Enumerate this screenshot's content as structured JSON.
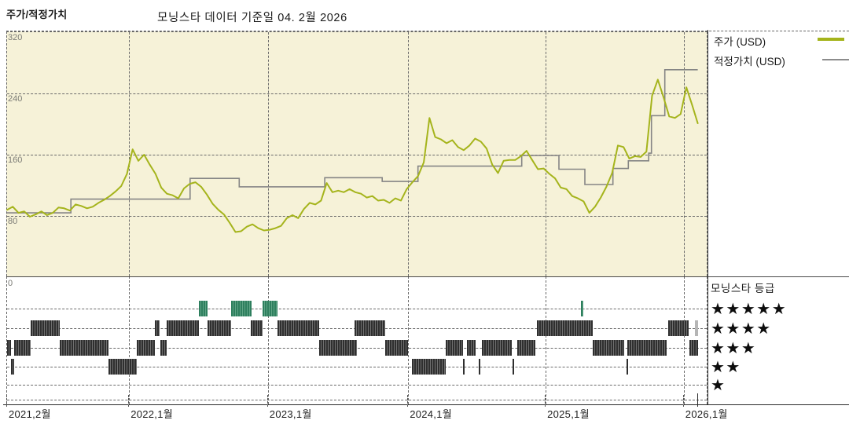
{
  "header": {
    "title_left": "주가/적정가치",
    "title_center": "모닝스타 데이터 기준일 04. 2월 2026"
  },
  "legend": {
    "items": [
      {
        "label": "주가 (USD)",
        "color": "#a5b41c",
        "thickness": 4
      },
      {
        "label": "적정가치 (USD)",
        "color": "#8c8c8c",
        "thickness": 2
      }
    ]
  },
  "rating_legend": {
    "title": "모닝스타 등급",
    "star": "★",
    "rows": [
      5,
      4,
      3,
      2,
      1
    ]
  },
  "colors": {
    "plot_bg": "#f6f2d8",
    "price_line": "#a5b41c",
    "fair_value_line": "#858585",
    "rating_neutral": "#2f2f2f",
    "rating_positive": "#2e7f5e",
    "rating_current": "#b5b5b5",
    "grid": "#6a6a6a"
  },
  "chart_data": {
    "type": "line",
    "title": "주가/적정가치",
    "as_of_label": "04. 2월 2026",
    "ylabel": "USD",
    "ylim": [
      0,
      320
    ],
    "yticks": [
      320,
      240,
      160,
      80,
      0
    ],
    "x_end_f": 0.985,
    "xticks": [
      {
        "label": "2021,2월",
        "f": 0.0
      },
      {
        "label": "2022,1월",
        "f": 0.174
      },
      {
        "label": "2023,1월",
        "f": 0.372
      },
      {
        "label": "2024,1월",
        "f": 0.572
      },
      {
        "label": "2025,1월",
        "f": 0.768
      },
      {
        "label": "2026,1월",
        "f": 0.965
      }
    ],
    "series": [
      {
        "name": "주가 (USD)",
        "unit": "USD",
        "start": "2021-02",
        "end": "2026-02-04",
        "interval": "semi-monthly",
        "values": [
          88,
          92,
          84,
          86,
          79,
          82,
          86,
          81,
          84,
          91,
          90,
          87,
          95,
          93,
          90,
          92,
          97,
          101,
          106,
          112,
          119,
          135,
          167,
          152,
          160,
          147,
          135,
          117,
          109,
          107,
          103,
          116,
          122,
          124,
          118,
          108,
          96,
          88,
          82,
          71,
          59,
          60,
          66,
          69,
          64,
          61,
          62,
          64,
          67,
          77,
          81,
          77,
          89,
          97,
          95,
          100,
          123,
          111,
          113,
          111,
          115,
          111,
          109,
          104,
          106,
          100,
          101,
          97,
          103,
          100,
          115,
          124,
          132,
          150,
          208,
          183,
          180,
          175,
          179,
          170,
          166,
          172,
          181,
          177,
          168,
          147,
          136,
          152,
          153,
          153,
          158,
          165,
          153,
          141,
          142,
          135,
          129,
          117,
          115,
          106,
          103,
          99,
          84,
          92,
          104,
          118,
          136,
          172,
          170,
          155,
          158,
          157,
          164,
          237,
          258,
          235,
          210,
          208,
          213,
          248,
          225,
          201
        ]
      },
      {
        "name": "적정가치 (USD)",
        "unit": "USD",
        "style": "step",
        "steps": [
          {
            "date": "2021-02",
            "f": 0.0,
            "value": 84
          },
          {
            "date": "2021-07",
            "f": 0.091,
            "value": 102
          },
          {
            "date": "2022-06",
            "f": 0.261,
            "value": 129
          },
          {
            "date": "2022-10",
            "f": 0.331,
            "value": 118
          },
          {
            "date": "2023-06",
            "f": 0.453,
            "value": 130
          },
          {
            "date": "2023-11",
            "f": 0.535,
            "value": 125
          },
          {
            "date": "2024-02",
            "f": 0.586,
            "value": 145
          },
          {
            "date": "2024-11",
            "f": 0.734,
            "value": 159
          },
          {
            "date": "2025-02",
            "f": 0.787,
            "value": 141
          },
          {
            "date": "2025-04",
            "f": 0.824,
            "value": 121
          },
          {
            "date": "2025-06",
            "f": 0.864,
            "value": 142
          },
          {
            "date": "2025-08",
            "f": 0.886,
            "value": 152
          },
          {
            "date": "2025-10",
            "f": 0.915,
            "value": 162
          },
          {
            "date": "2025-10",
            "f": 0.919,
            "value": 211
          },
          {
            "date": "2025-11",
            "f": 0.938,
            "value": 271
          }
        ]
      }
    ],
    "ratings": {
      "row_order": [
        5,
        4,
        3,
        2,
        1
      ],
      "segments": [
        {
          "stars": 5,
          "from": 0.274,
          "to": 0.286,
          "kind": "positive"
        },
        {
          "stars": 5,
          "from": 0.32,
          "to": 0.349,
          "kind": "positive"
        },
        {
          "stars": 5,
          "from": 0.364,
          "to": 0.386,
          "kind": "positive"
        },
        {
          "stars": 5,
          "from": 0.818,
          "to": 0.822,
          "kind": "positive"
        },
        {
          "stars": 4,
          "from": 0.034,
          "to": 0.075,
          "kind": "neutral"
        },
        {
          "stars": 4,
          "from": 0.211,
          "to": 0.218,
          "kind": "neutral"
        },
        {
          "stars": 4,
          "from": 0.228,
          "to": 0.274,
          "kind": "neutral"
        },
        {
          "stars": 4,
          "from": 0.286,
          "to": 0.32,
          "kind": "neutral"
        },
        {
          "stars": 4,
          "from": 0.348,
          "to": 0.364,
          "kind": "neutral"
        },
        {
          "stars": 4,
          "from": 0.386,
          "to": 0.445,
          "kind": "neutral"
        },
        {
          "stars": 4,
          "from": 0.496,
          "to": 0.539,
          "kind": "neutral"
        },
        {
          "stars": 4,
          "from": 0.756,
          "to": 0.835,
          "kind": "neutral"
        },
        {
          "stars": 4,
          "from": 0.943,
          "to": 0.972,
          "kind": "neutral"
        },
        {
          "stars": 4,
          "from": 0.981,
          "to": 0.985,
          "kind": "current"
        },
        {
          "stars": 3,
          "from": 0.0,
          "to": 0.005,
          "kind": "neutral"
        },
        {
          "stars": 3,
          "from": 0.01,
          "to": 0.034,
          "kind": "neutral"
        },
        {
          "stars": 3,
          "from": 0.075,
          "to": 0.145,
          "kind": "neutral"
        },
        {
          "stars": 3,
          "from": 0.185,
          "to": 0.211,
          "kind": "neutral"
        },
        {
          "stars": 3,
          "from": 0.218,
          "to": 0.228,
          "kind": "neutral"
        },
        {
          "stars": 3,
          "from": 0.445,
          "to": 0.499,
          "kind": "neutral"
        },
        {
          "stars": 3,
          "from": 0.539,
          "to": 0.572,
          "kind": "neutral"
        },
        {
          "stars": 3,
          "from": 0.626,
          "to": 0.65,
          "kind": "neutral"
        },
        {
          "stars": 3,
          "from": 0.656,
          "to": 0.668,
          "kind": "neutral"
        },
        {
          "stars": 3,
          "from": 0.677,
          "to": 0.72,
          "kind": "neutral"
        },
        {
          "stars": 3,
          "from": 0.727,
          "to": 0.753,
          "kind": "neutral"
        },
        {
          "stars": 3,
          "from": 0.835,
          "to": 0.88,
          "kind": "neutral"
        },
        {
          "stars": 3,
          "from": 0.885,
          "to": 0.941,
          "kind": "neutral"
        },
        {
          "stars": 3,
          "from": 0.973,
          "to": 0.985,
          "kind": "neutral"
        },
        {
          "stars": 2,
          "from": 0.005,
          "to": 0.01,
          "kind": "neutral"
        },
        {
          "stars": 2,
          "from": 0.145,
          "to": 0.185,
          "kind": "neutral"
        },
        {
          "stars": 2,
          "from": 0.577,
          "to": 0.626,
          "kind": "neutral"
        },
        {
          "stars": 2,
          "from": 0.65,
          "to": 0.652,
          "kind": "neutral"
        },
        {
          "stars": 2,
          "from": 0.673,
          "to": 0.675,
          "kind": "neutral"
        },
        {
          "stars": 2,
          "from": 0.721,
          "to": 0.723,
          "kind": "neutral"
        },
        {
          "stars": 2,
          "from": 0.883,
          "to": 0.885,
          "kind": "neutral"
        }
      ]
    }
  }
}
